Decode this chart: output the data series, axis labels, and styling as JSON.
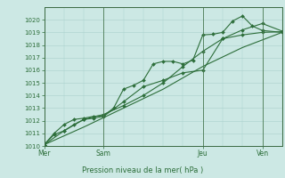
{
  "bg_color": "#cce8e4",
  "grid_color": "#aad0cc",
  "line_color": "#2d6e3a",
  "marker_color": "#2d6e3a",
  "xlabel": "Pression niveau de la mer( hPa )",
  "ylim": [
    1010,
    1021
  ],
  "yticks": [
    1010,
    1011,
    1012,
    1013,
    1014,
    1015,
    1016,
    1017,
    1018,
    1019,
    1020
  ],
  "xtick_labels": [
    "Mer",
    "Sam",
    "Jeu",
    "Ven"
  ],
  "xtick_pos": [
    0,
    3,
    8,
    11
  ],
  "vline_pos": [
    0,
    3,
    8,
    11
  ],
  "series2": [
    0,
    0.5,
    1.0,
    1.5,
    2.0,
    2.5,
    3.0,
    3.5,
    4.0,
    4.5,
    5.0,
    5.5,
    6.0,
    6.5,
    7.0,
    7.5,
    8.0,
    8.5,
    9.0,
    9.5,
    10.0,
    10.5,
    11.0,
    12.0
  ],
  "vals2": [
    1010.1,
    1011.0,
    1011.7,
    1012.1,
    1012.2,
    1012.35,
    1012.4,
    1013.0,
    1014.5,
    1014.8,
    1015.2,
    1016.5,
    1016.7,
    1016.7,
    1016.5,
    1016.8,
    1018.8,
    1018.85,
    1019.0,
    1019.9,
    1020.3,
    1019.5,
    1019.15,
    1019.0
  ],
  "series1": [
    0,
    0.5,
    1.0,
    1.5,
    2.0,
    2.5,
    3.0,
    4.0,
    5.0,
    6.0,
    7.0,
    8.0,
    9.0,
    10.0,
    11.0,
    12.0
  ],
  "vals1": [
    1010.1,
    1010.9,
    1011.2,
    1011.7,
    1012.1,
    1012.2,
    1012.35,
    1013.5,
    1014.7,
    1015.2,
    1015.8,
    1016.0,
    1018.5,
    1018.8,
    1019.0,
    1019.05
  ],
  "series3": [
    0,
    1.0,
    2.0,
    3.0,
    4.0,
    5.0,
    6.0,
    7.0,
    8.0,
    9.0,
    10.0,
    11.0,
    12.0
  ],
  "vals3": [
    1010.1,
    1011.2,
    1012.1,
    1012.5,
    1013.2,
    1014.0,
    1015.0,
    1016.3,
    1017.5,
    1018.5,
    1019.2,
    1019.7,
    1019.1
  ],
  "series4": [
    0,
    2.0,
    4.0,
    6.0,
    8.0,
    10.0,
    12.0
  ],
  "vals4": [
    1010.1,
    1011.5,
    1013.0,
    1014.5,
    1016.3,
    1017.8,
    1019.0
  ]
}
